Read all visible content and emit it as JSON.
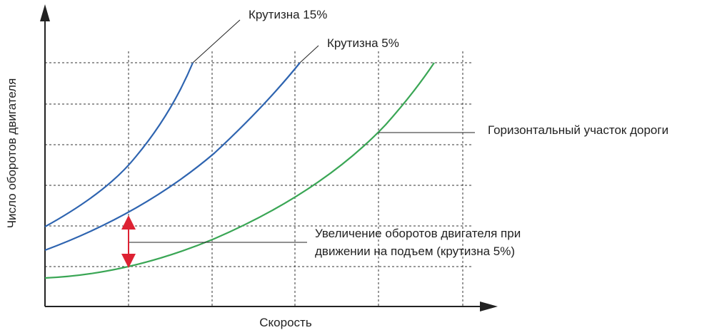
{
  "axes": {
    "x_label": "Скорость",
    "y_label": "Число оборотов двигателя"
  },
  "curves": [
    {
      "label": "Крутизна 15%"
    },
    {
      "label": "Крутизна 5%"
    },
    {
      "label": "Горизонтальный участок дороги"
    }
  ],
  "annotation": {
    "lines": [
      "Увеличение оборотов двигателя при",
      "движении на подъем (крутизна 5%)"
    ]
  }
}
